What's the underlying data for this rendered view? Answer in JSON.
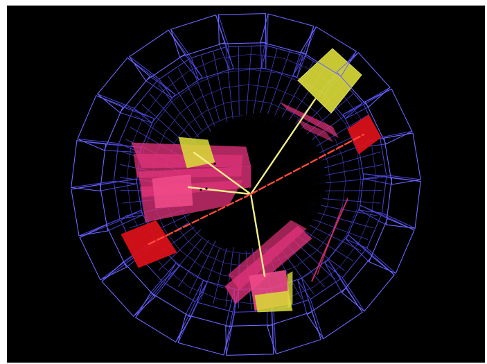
{
  "scene": {
    "background_color": "#000000",
    "frame_color": "#ffffff",
    "palette": {
      "detector_wireframe": "#4a46d8",
      "wireframe_bright": "#6b66ff",
      "pink_energy": "#e0337a",
      "red_energy": "#d8101a",
      "yellow_energy": "#d8d838",
      "track_yellow": "#f2ef8a",
      "track_red": "#ff4a3a",
      "inner_hole": "#000000"
    },
    "content_summary_icon": "particle-collision-event-display-icon"
  }
}
